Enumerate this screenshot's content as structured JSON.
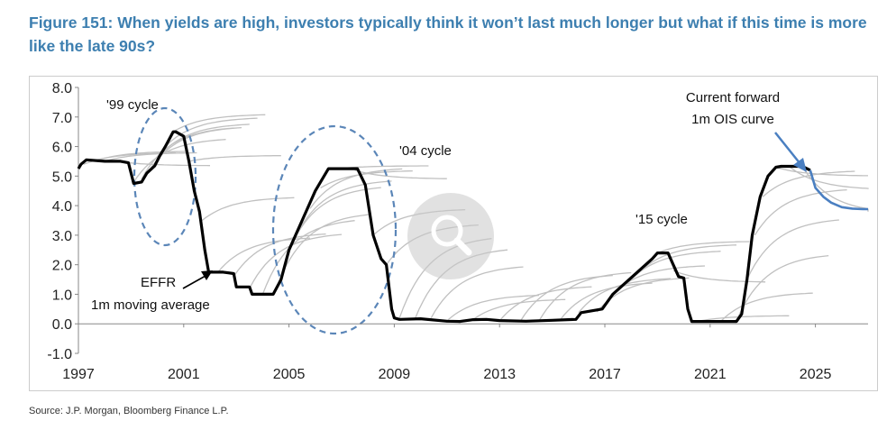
{
  "figure": {
    "title": "Figure 151: When yields are high, investors typically think it won’t last much longer but what if this time is more like the late 90s?",
    "source": "Source: J.P. Morgan, Bloomberg Finance L.P."
  },
  "chart_data": {
    "type": "line",
    "title": "Figure 151: When yields are high, investors typically think it won’t last much longer but what if this time is more like the late 90s?",
    "xlabel": "",
    "ylabel": "",
    "xlim": [
      1997,
      2027
    ],
    "ylim": [
      -1.0,
      8.0
    ],
    "x_ticks": [
      1997,
      2001,
      2005,
      2009,
      2013,
      2017,
      2021,
      2025
    ],
    "x_tick_labels": [
      "1997",
      "2001",
      "2005",
      "2009",
      "2013",
      "2017",
      "2021",
      "2025"
    ],
    "y_ticks": [
      -1,
      0,
      1,
      2,
      3,
      4,
      5,
      6,
      7,
      8
    ],
    "y_tick_labels": [
      "-1.0",
      "0.0",
      "1.0",
      "2.0",
      "3.0",
      "4.0",
      "5.0",
      "6.0",
      "7.0",
      "8.0"
    ],
    "grid": false,
    "colors": {
      "effr": "#000000",
      "forwards": "#c0c0c0",
      "current_curve": "#4a7fc1",
      "ellipse": "#5b86b8",
      "axis": "#888888"
    },
    "series": [
      {
        "name": "EFFR 1m moving average",
        "x": [
          1997.0,
          1997.1,
          1997.3,
          1998.0,
          1998.6,
          1998.9,
          1999.1,
          1999.4,
          1999.6,
          1999.9,
          2000.1,
          2000.3,
          2000.6,
          2000.7,
          2001.0,
          2001.2,
          2001.4,
          2001.6,
          2001.8,
          2001.95,
          2002.5,
          2002.9,
          2003.0,
          2003.5,
          2003.6,
          2004.0,
          2004.4,
          2004.7,
          2005.0,
          2005.5,
          2006.0,
          2006.5,
          2006.8,
          2007.6,
          2007.9,
          2008.2,
          2008.5,
          2008.7,
          2008.9,
          2009.0,
          2009.2,
          2010.0,
          2011.0,
          2011.5,
          2012.0,
          2012.5,
          2013.0,
          2014.0,
          2015.0,
          2015.9,
          2016.1,
          2016.9,
          2017.3,
          2017.8,
          2018.3,
          2018.8,
          2019.0,
          2019.4,
          2019.6,
          2019.8,
          2020.0,
          2020.15,
          2020.3,
          2021.0,
          2021.5,
          2022.0,
          2022.2,
          2022.4,
          2022.6,
          2022.9,
          2023.2,
          2023.5,
          2023.7,
          2024.0,
          2024.5,
          2024.8
        ],
        "y": [
          5.25,
          5.4,
          5.55,
          5.5,
          5.5,
          5.45,
          4.75,
          4.8,
          5.1,
          5.35,
          5.7,
          6.0,
          6.5,
          6.5,
          6.35,
          5.5,
          4.5,
          3.8,
          2.5,
          1.75,
          1.75,
          1.7,
          1.25,
          1.25,
          1.0,
          1.0,
          1.0,
          1.5,
          2.5,
          3.5,
          4.5,
          5.25,
          5.25,
          5.25,
          4.7,
          3.0,
          2.2,
          2.0,
          0.5,
          0.2,
          0.15,
          0.17,
          0.09,
          0.08,
          0.14,
          0.15,
          0.11,
          0.09,
          0.12,
          0.15,
          0.38,
          0.5,
          1.0,
          1.4,
          1.8,
          2.2,
          2.4,
          2.4,
          2.0,
          1.6,
          1.55,
          0.5,
          0.08,
          0.08,
          0.08,
          0.08,
          0.33,
          1.5,
          3.0,
          4.3,
          5.0,
          5.3,
          5.33,
          5.33,
          5.33,
          5.2
        ]
      },
      {
        "name": "Current forward 1m OIS curve",
        "x": [
          2024.8,
          2025.0,
          2025.3,
          2025.6,
          2026.0,
          2026.4,
          2026.8,
          2027.0
        ],
        "y": [
          5.2,
          4.6,
          4.3,
          4.1,
          3.95,
          3.9,
          3.88,
          3.88
        ]
      }
    ],
    "forward_curves": {
      "name": "Historical forward curves",
      "starts": [
        [
          1997.2,
          5.4,
          0.4
        ],
        [
          1997.6,
          5.5,
          0.35
        ],
        [
          1998.0,
          5.5,
          0.3
        ],
        [
          1998.5,
          5.5,
          -0.15
        ],
        [
          1999.1,
          4.8,
          1.5
        ],
        [
          1999.4,
          4.9,
          1.8
        ],
        [
          1999.7,
          5.2,
          1.5
        ],
        [
          2000.0,
          5.6,
          1.2
        ],
        [
          2000.3,
          6.0,
          1.0
        ],
        [
          2000.6,
          6.5,
          0.6
        ],
        [
          2001.2,
          5.5,
          0.2
        ],
        [
          2001.7,
          3.5,
          0.8
        ],
        [
          2002.3,
          1.75,
          1.2
        ],
        [
          2002.9,
          1.6,
          1.5
        ],
        [
          2003.5,
          1.2,
          1.9
        ],
        [
          2004.0,
          1.0,
          2.6
        ],
        [
          2004.6,
          1.4,
          2.4
        ],
        [
          2005.0,
          2.5,
          2.2
        ],
        [
          2005.4,
          3.2,
          1.7
        ],
        [
          2005.8,
          3.9,
          1.4
        ],
        [
          2006.2,
          4.6,
          0.6
        ],
        [
          2006.8,
          5.25,
          0.1
        ],
        [
          2007.5,
          5.2,
          -0.3
        ],
        [
          2008.2,
          3.0,
          0.9
        ],
        [
          2008.7,
          2.0,
          1.4
        ],
        [
          2009.2,
          0.2,
          2.8
        ],
        [
          2009.8,
          0.2,
          2.4
        ],
        [
          2010.4,
          0.2,
          1.8
        ],
        [
          2011.0,
          0.1,
          0.9
        ],
        [
          2012.0,
          0.15,
          0.7
        ],
        [
          2013.0,
          0.1,
          1.2
        ],
        [
          2013.8,
          0.1,
          1.6
        ],
        [
          2014.5,
          0.1,
          1.7
        ],
        [
          2015.3,
          0.13,
          1.3
        ],
        [
          2016.0,
          0.38,
          1.2
        ],
        [
          2016.7,
          0.4,
          1.2
        ],
        [
          2017.3,
          1.0,
          1.0
        ],
        [
          2017.9,
          1.4,
          1.1
        ],
        [
          2018.5,
          1.9,
          0.8
        ],
        [
          2019.0,
          2.4,
          0.4
        ],
        [
          2019.6,
          1.8,
          -0.4
        ],
        [
          2020.5,
          0.08,
          0.2
        ],
        [
          2021.4,
          0.08,
          1.0
        ],
        [
          2022.0,
          0.1,
          2.3
        ],
        [
          2022.4,
          1.5,
          2.1
        ],
        [
          2022.7,
          3.0,
          1.6
        ],
        [
          2023.0,
          4.3,
          0.9
        ],
        [
          2023.5,
          5.3,
          -0.3
        ],
        [
          2024.0,
          5.33,
          -0.8
        ],
        [
          2024.5,
          5.33,
          -1.6
        ]
      ]
    },
    "annotations": [
      {
        "id": "cycle-99",
        "text": "'99 cycle"
      },
      {
        "id": "cycle-04",
        "text": "'04 cycle"
      },
      {
        "id": "cycle-15",
        "text": "'15 cycle"
      },
      {
        "id": "effr-label-1",
        "text": "EFFR"
      },
      {
        "id": "effr-label-2",
        "text": "1m moving average"
      },
      {
        "id": "ois-label-1",
        "text": "Current forward"
      },
      {
        "id": "ois-label-2",
        "text": "1m OIS curve"
      }
    ]
  }
}
